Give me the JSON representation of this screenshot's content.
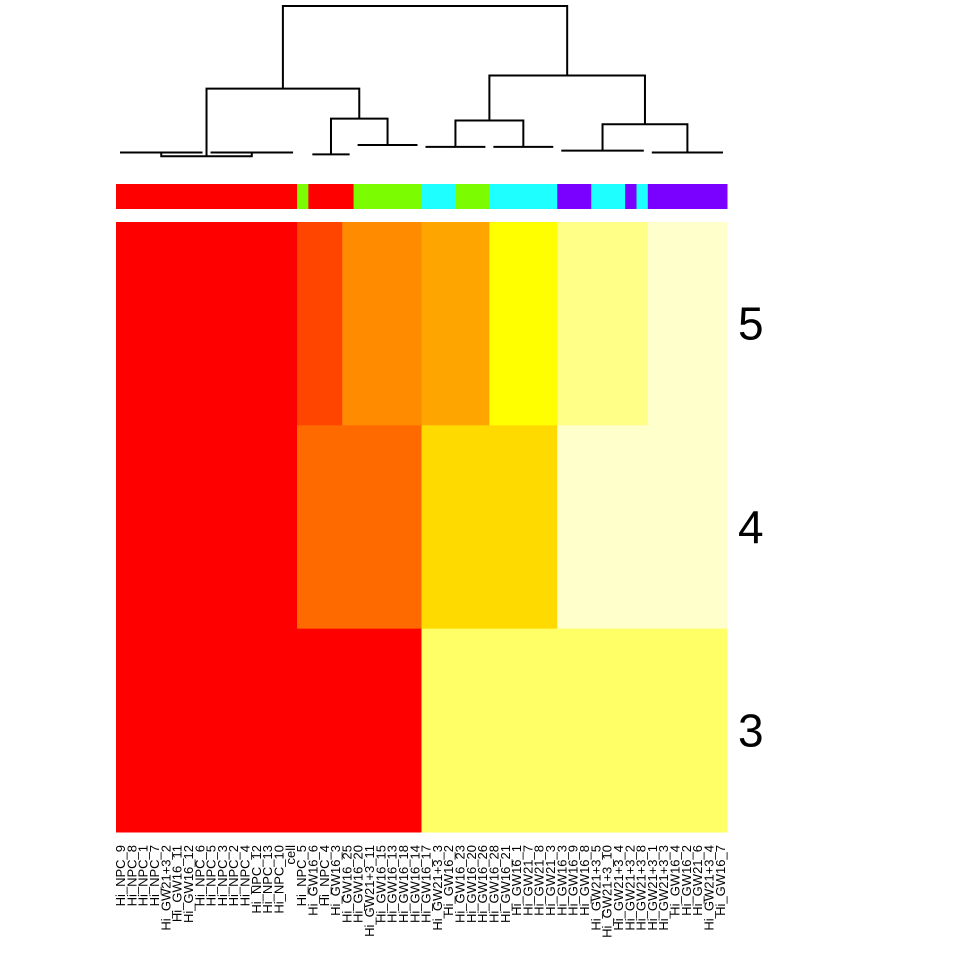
{
  "chart_data": {
    "type": "heatmap",
    "title": "",
    "xlabel": "",
    "ylabel": "",
    "colors": {
      "c_red": "#FF0000",
      "c_redorange": "#FF4500",
      "c_orange": "#FF6A00",
      "c_orange2": "#FF8C00",
      "c_amber": "#FFA500",
      "c_gold": "#FFDA00",
      "c_yellow": "#FFFF00",
      "c_lightyellow": "#FFFF66",
      "c_paleyellow": "#FFFF88",
      "c_cream": "#FFFFCC",
      "ann_red": "#FF0000",
      "ann_green": "#7CFC00",
      "ann_cyan": "#1EFFFF",
      "ann_violet": "#7A00FF"
    },
    "columns": [
      "Hi_NPC_9",
      "Hi_NPC_8",
      "Hi_NPC_1",
      "Hi_NPC_7",
      "Hi_GW21+3_2",
      "Hi_GW16_11",
      "Hi_GW16_12",
      "Hi_NPC_6",
      "Hi_NPC_5",
      "Hi_NPC_3",
      "Hi_NPC_2",
      "Hi_NPC_4",
      "Hi_NPC_12",
      "Hi_NPC_13",
      "Hi_NPC_10",
      "cell",
      "Hi_NPC_5",
      "Hi_GW16_6",
      "Hi_NPC_4",
      "Hi_GW16_3",
      "Hi_GW16_25",
      "Hi_GW16_20",
      "Hi_GW21+3_11",
      "Hi_GW16_15",
      "Hi_GW16_13",
      "Hi_GW16_18",
      "Hi_GW16_14",
      "Hi_GW16_17",
      "Hi_GW21+3_3",
      "Hi_GW16_2",
      "Hi_GW16_23",
      "Hi_GW16_20",
      "Hi_GW16_26",
      "Hi_GW16_28",
      "Hi_GW16_21",
      "Hi_GW16_1",
      "Hi_GW21_7",
      "Hi_GW21_8",
      "Hi_GW21_3",
      "Hi_GW16_3",
      "Hi_GW16_9",
      "Hi_GW16_8",
      "Hi_GW21+3_5",
      "Hi_GW21+3_10",
      "Hi_GW21+3_4",
      "Hi_GW21+3_2",
      "Hi_GW21+3_8",
      "Hi_GW21+3_1",
      "Hi_GW21+3_3",
      "Hi_GW16_4",
      "Hi_GW16_2",
      "Hi_GW21_6",
      "Hi_GW21+3_4",
      "Hi_GW16_7"
    ],
    "row_labels": [
      "5",
      "4",
      "3"
    ],
    "annotation_segments": [
      {
        "start": 0,
        "end": 16,
        "color": "ann_red"
      },
      {
        "start": 16,
        "end": 17,
        "color": "ann_green"
      },
      {
        "start": 17,
        "end": 21,
        "color": "ann_red"
      },
      {
        "start": 21,
        "end": 27,
        "color": "ann_green"
      },
      {
        "start": 27,
        "end": 30,
        "color": "ann_cyan"
      },
      {
        "start": 30,
        "end": 33,
        "color": "ann_green"
      },
      {
        "start": 33,
        "end": 39,
        "color": "ann_cyan"
      },
      {
        "start": 39,
        "end": 42,
        "color": "ann_violet"
      },
      {
        "start": 42,
        "end": 45,
        "color": "ann_cyan"
      },
      {
        "start": 45,
        "end": 46,
        "color": "ann_violet"
      },
      {
        "start": 46,
        "end": 47,
        "color": "ann_cyan"
      },
      {
        "start": 47,
        "end": 54,
        "color": "ann_violet"
      }
    ],
    "heat_rows": [
      [
        {
          "start": 0,
          "end": 16,
          "color": "c_red"
        },
        {
          "start": 16,
          "end": 20,
          "color": "c_redorange"
        },
        {
          "start": 20,
          "end": 27,
          "color": "c_orange2"
        },
        {
          "start": 27,
          "end": 33,
          "color": "c_amber"
        },
        {
          "start": 33,
          "end": 39,
          "color": "c_yellow"
        },
        {
          "start": 39,
          "end": 47,
          "color": "c_paleyellow"
        },
        {
          "start": 47,
          "end": 54,
          "color": "c_cream"
        }
      ],
      [
        {
          "start": 0,
          "end": 16,
          "color": "c_red"
        },
        {
          "start": 16,
          "end": 27,
          "color": "c_orange"
        },
        {
          "start": 27,
          "end": 39,
          "color": "c_gold"
        },
        {
          "start": 39,
          "end": 54,
          "color": "c_cream"
        }
      ],
      [
        {
          "start": 0,
          "end": 27,
          "color": "c_red"
        },
        {
          "start": 27,
          "end": 54,
          "color": "c_lightyellow"
        }
      ]
    ],
    "dendrogram": {
      "groups": [
        [
          0,
          8
        ],
        [
          8,
          16
        ],
        [
          17,
          21
        ],
        [
          21,
          27
        ],
        [
          27,
          33
        ],
        [
          33,
          39
        ],
        [
          39,
          47
        ],
        [
          47,
          54
        ]
      ],
      "merges": [
        [
          0,
          1
        ],
        [
          2,
          3
        ],
        [
          4,
          5
        ],
        [
          6,
          7
        ],
        [
          8,
          9
        ],
        [
          10,
          11
        ],
        [
          12,
          13
        ]
      ],
      "heights": [
        1.2,
        1.2,
        1.1,
        1.6,
        1.5,
        1.5,
        1.3,
        1.2,
        1.0,
        3.0,
        2.9,
        2.7,
        4.6,
        5.3,
        9.0
      ]
    }
  }
}
